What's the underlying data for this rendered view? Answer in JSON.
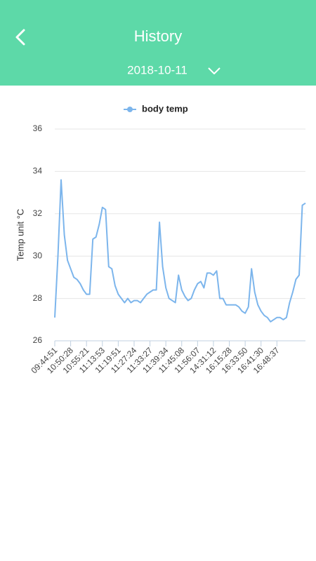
{
  "header": {
    "title": "History",
    "date": "2018-10-11"
  },
  "chart_data": {
    "type": "line",
    "y_label": "Temp unit °C",
    "categories": [
      "09:44:51",
      null,
      null,
      null,
      null,
      "10:50:28",
      null,
      null,
      null,
      null,
      "10:55:21",
      null,
      null,
      null,
      null,
      "11:13:53",
      null,
      null,
      null,
      null,
      "11:19:51",
      null,
      null,
      null,
      null,
      "11:27:24",
      null,
      null,
      null,
      null,
      "11:33:27",
      null,
      null,
      null,
      null,
      "11:39:34",
      null,
      null,
      null,
      null,
      "11:45:08",
      null,
      null,
      null,
      null,
      "11:56:07",
      null,
      null,
      null,
      null,
      "14:31:12",
      null,
      null,
      null,
      null,
      "16:15:28",
      null,
      null,
      null,
      null,
      "16:33:50",
      null,
      null,
      null,
      null,
      "16:41:30",
      null,
      null,
      null,
      null,
      "16:48:37",
      null,
      null,
      null,
      null,
      null,
      null,
      null,
      null,
      null
    ],
    "series": [
      {
        "name": "body temp",
        "color": "#7cb5ec",
        "values": [
          27.1,
          30.0,
          33.6,
          31.0,
          29.8,
          29.4,
          29.0,
          28.9,
          28.7,
          28.4,
          28.2,
          28.2,
          30.8,
          30.9,
          31.5,
          32.3,
          32.2,
          29.5,
          29.4,
          28.6,
          28.2,
          28.0,
          27.8,
          28.0,
          27.8,
          27.9,
          27.9,
          27.8,
          28.0,
          28.2,
          28.3,
          28.4,
          28.4,
          31.6,
          29.5,
          28.5,
          28.0,
          27.9,
          27.8,
          29.1,
          28.4,
          28.1,
          27.9,
          28.0,
          28.4,
          28.7,
          28.8,
          28.5,
          29.2,
          29.2,
          29.1,
          29.3,
          28.0,
          28.0,
          27.7,
          27.7,
          27.7,
          27.7,
          27.6,
          27.4,
          27.3,
          27.6,
          29.4,
          28.3,
          27.7,
          27.4,
          27.2,
          27.1,
          26.9,
          27.0,
          27.1,
          27.1,
          27.0,
          27.1,
          27.8,
          28.3,
          28.9,
          29.1,
          32.4,
          32.5
        ]
      }
    ],
    "ylim": [
      26,
      36
    ],
    "yticks": [
      26,
      28,
      30,
      32,
      34,
      36
    ],
    "grid": true
  }
}
